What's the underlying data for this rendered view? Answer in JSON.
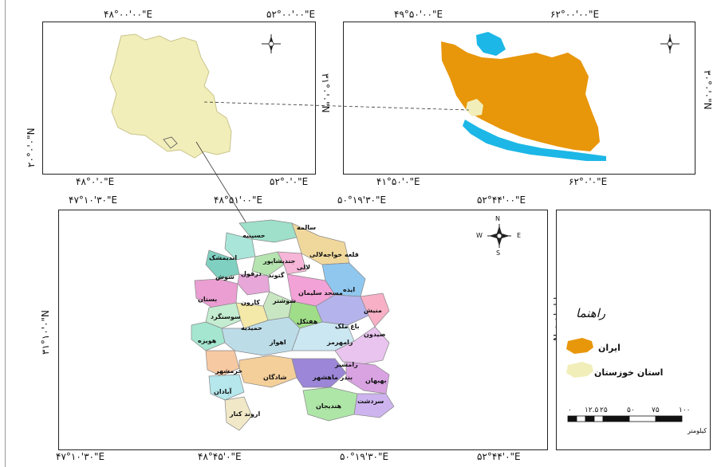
{
  "top_left_map": {
    "top_coords": [
      "۴۸°۰۰'۰۰\"E",
      "۵۲°۰۰'۰۰\"E"
    ],
    "bottom_coords": [
      "۴۸°۰'۰\"E",
      "۵۲°۰'۰\"E"
    ],
    "left_coord": "۲۰°۰'۰\"N",
    "right_coord": "۳۱°۰'۰\"N"
  },
  "top_right_map": {
    "top_coords": [
      "۴۹°۵۰'۰۰\"E",
      "۶۲°۰۰'۰۰\"E"
    ],
    "bottom_coords": [
      "۴۱°۵۰'۰\"E",
      "۶۲°۰'۰\"E"
    ],
    "right_coord": "۳۰°۰'۰\"N"
  },
  "bottom_map": {
    "top_coords": [
      "۴۷°۱۰'۳۰\"E",
      "۴۸°۵۱'۰۰\"E",
      "۵۰°۱۹'۳۰\"E",
      "۵۲°۴۴'۰۰\"E"
    ],
    "bottom_coords": [
      "۴۷°۱۰'۳۰\"E",
      "۴۸°۴۵'۰\"E",
      "۵۰°۱۹'۳۰\"E",
      "۵۲°۴۴'۰\"E"
    ],
    "left_coord": "۳۱°۱۰'۰\"N",
    "right_coord": "۳۱°۱۰'۰\"N",
    "north_arrow": {
      "n": "N",
      "s": "S",
      "e": "E",
      "w": "W"
    },
    "counties": [
      "سالمه",
      "حسینیه",
      "قلعه خواجه‌لالی",
      "اندیمشک",
      "جندیشاپور",
      "لالی",
      "دزفول",
      "گتوند",
      "شوش",
      "شوشتر",
      "ایذه",
      "مسجد سلیمان",
      "کارون",
      "بدرقه",
      "دشت آزادگان",
      "حمیدیه",
      "سوسنگرد",
      "هویزه",
      "اهواز",
      "هفتکل",
      "باغ ملک",
      "رامهرمز",
      "منیش",
      "خرمشهر",
      "آبادان",
      "بندر ماهشهر",
      "شادگان",
      "امیدیه",
      "بهبهان",
      "هندیجان",
      "آغاجاری",
      "رامشیر",
      "بستان",
      "اروند کنار",
      "سردشت",
      "صیدون"
    ]
  },
  "legend": {
    "title": "راهنما",
    "items": [
      {
        "label": "ایران",
        "color": "#e8960a"
      },
      {
        "label": "استان خوزستان",
        "color": "#f2eeba"
      }
    ],
    "scale_ticks": [
      "۰",
      "۱۲.۵",
      "۲۵",
      "۵۰",
      "۷۵",
      "۱۰۰"
    ],
    "scale_unit": "کیلومتر"
  },
  "colors": {
    "iran_fill": "#e8960a",
    "water": "#1cb7e6",
    "khuzestan_fill": "#f2eeba"
  }
}
